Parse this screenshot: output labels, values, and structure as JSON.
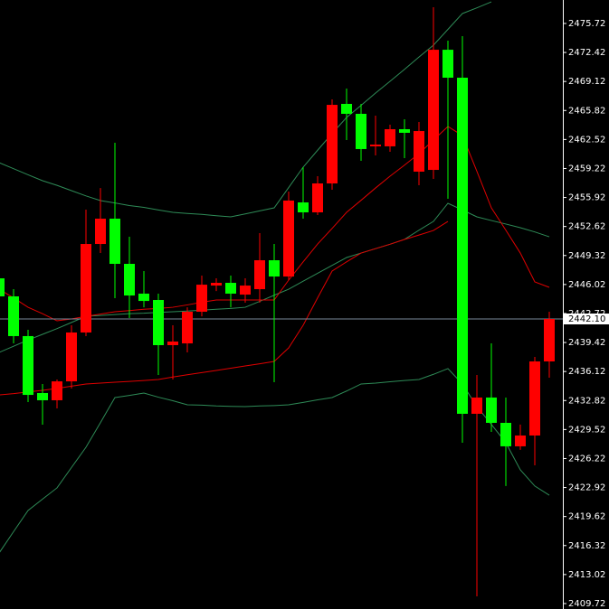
{
  "chart_data": {
    "type": "candlestick",
    "ylim": [
      2409.1,
      2478.39
    ],
    "yticks": [
      2475.72,
      2472.42,
      2469.12,
      2465.82,
      2462.52,
      2459.22,
      2455.92,
      2452.62,
      2449.32,
      2446.02,
      2442.72,
      2439.42,
      2436.12,
      2432.82,
      2429.52,
      2426.22,
      2422.92,
      2419.62,
      2416.32,
      2413.02,
      2409.72
    ],
    "last_price": {
      "value": 2442.1,
      "label": "2442.10"
    },
    "up_color": "#ff0000",
    "down_color": "#00ff00",
    "last_price_color": "#778899",
    "open": [
      2446.72,
      2444.67,
      2440.15,
      2433.67,
      2432.85,
      2435.0,
      2440.56,
      2450.63,
      2453.51,
      2448.37,
      2444.98,
      2444.26,
      2439.12,
      2439.32,
      2442.92,
      2445.9,
      2446.21,
      2444.87,
      2445.49,
      2448.78,
      2446.93,
      2455.36,
      2454.23,
      2457.52,
      2466.57,
      2465.44,
      2461.74,
      2461.74,
      2463.69,
      2458.86,
      2459.06,
      2472.73,
      2469.55,
      2431.31,
      2433.16,
      2430.28,
      2427.61,
      2428.84,
      2437.27
    ],
    "high": [
      2447.03,
      2445.49,
      2440.87,
      2434.7,
      2435.21,
      2441.38,
      2454.54,
      2457.0,
      2462.15,
      2451.45,
      2447.55,
      2444.98,
      2441.38,
      2443.43,
      2447.03,
      2446.72,
      2447.03,
      2446.72,
      2451.87,
      2450.63,
      2456.59,
      2459.37,
      2458.34,
      2467.08,
      2468.32,
      2466.57,
      2465.23,
      2464.2,
      2464.82,
      2464.51,
      2477.57,
      2473.76,
      2474.28,
      2435.73,
      2439.32,
      2433.16,
      2430.08,
      2437.78,
      2442.92
    ],
    "low": [
      2444.46,
      2439.32,
      2432.64,
      2430.07,
      2431.92,
      2434.18,
      2440.15,
      2449.6,
      2444.46,
      2442.2,
      2443.43,
      2435.72,
      2435.21,
      2438.29,
      2442.4,
      2445.28,
      2443.43,
      2443.95,
      2443.95,
      2434.91,
      2446.52,
      2453.51,
      2453.92,
      2456.8,
      2462.46,
      2460.09,
      2460.71,
      2461.12,
      2460.4,
      2457.31,
      2458.03,
      2455.77,
      2428.02,
      2410.54,
      2429.25,
      2423.09,
      2427.2,
      2425.45,
      2435.42
    ],
    "close": [
      2444.67,
      2440.15,
      2433.46,
      2432.85,
      2435.0,
      2440.56,
      2450.63,
      2453.51,
      2448.37,
      2444.77,
      2444.15,
      2439.12,
      2439.53,
      2442.92,
      2446.0,
      2446.21,
      2444.98,
      2445.9,
      2448.78,
      2446.93,
      2455.57,
      2454.23,
      2457.52,
      2466.46,
      2465.44,
      2461.43,
      2461.94,
      2463.69,
      2463.28,
      2463.48,
      2472.73,
      2469.55,
      2431.31,
      2433.16,
      2430.28,
      2427.61,
      2428.84,
      2437.27,
      2442.1
    ],
    "lines": [
      {
        "color": "#2e8b57",
        "values": [
          2459.88,
          2459.2,
          2458.5,
          2457.83,
          2457.3,
          2456.7,
          2456.1,
          2455.57,
          2455.3,
          2455.0,
          2454.8,
          2454.5,
          2454.23,
          2454.1,
          2454.0,
          2453.85,
          2453.72,
          2454.05,
          2454.4,
          2454.74,
          2457.05,
          2459.37,
          2461.3,
          2463.2,
          2465.03,
          2466.4,
          2467.8,
          2469.14,
          2470.5,
          2471.9,
          2473.25,
          2475.05,
          2476.85,
          2477.5,
          2478.18,
          null,
          null,
          null,
          null
        ]
      },
      {
        "color": "#2e8b57",
        "values": [
          2438.29,
          2439.0,
          2439.7,
          2440.35,
          2441.0,
          2441.7,
          2442.41,
          2442.5,
          2442.6,
          2442.7,
          2442.75,
          2442.85,
          2442.92,
          2443.0,
          2443.1,
          2443.2,
          2443.3,
          2443.43,
          2444.1,
          2444.8,
          2445.49,
          2446.4,
          2447.3,
          2448.2,
          2449.09,
          2449.6,
          2450.1,
          2450.6,
          2451.15,
          2452.2,
          2453.2,
          2455.26,
          2454.5,
          2453.72,
          2453.3,
          2452.9,
          2452.48,
          2452.0,
          2451.45
        ]
      },
      {
        "color": "#2e8b57",
        "values": [
          2415.47,
          2417.9,
          2420.31,
          2421.6,
          2422.88,
          2425.2,
          2427.5,
          2430.3,
          2433.16,
          2433.4,
          2433.67,
          2433.2,
          2432.8,
          2432.33,
          2432.3,
          2432.2,
          2432.15,
          2432.13,
          2432.2,
          2432.25,
          2432.33,
          2432.6,
          2432.9,
          2433.16,
          2433.9,
          2434.7,
          2434.8,
          2434.95,
          2435.1,
          2435.21,
          2435.8,
          2436.45,
          2434.7,
          2432.13,
          2430.1,
          2428.02,
          2424.93,
          2423.09,
          2422.05
        ]
      },
      {
        "color": "#e00000",
        "values": [
          2445.49,
          2444.5,
          2443.43,
          2442.7,
          2441.89,
          2442.1,
          2442.4,
          2442.65,
          2442.92,
          2443.05,
          2443.2,
          2443.3,
          2443.43,
          2443.7,
          2444.0,
          2444.26,
          2444.26,
          2444.26,
          2444.26,
          2444.26,
          2446.52,
          2448.6,
          2450.63,
          2452.4,
          2454.23,
          2455.6,
          2457.0,
          2458.34,
          2459.6,
          2460.91,
          2462.45,
          2464.0,
          2462.97,
          2458.9,
          2454.74,
          2452.2,
          2449.6,
          2446.32,
          2445.7
        ]
      },
      {
        "color": "#e00000",
        "values": [
          2433.46,
          2433.6,
          2433.8,
          2433.98,
          2434.2,
          2434.45,
          2434.7,
          2434.8,
          2434.9,
          2435.0,
          2435.1,
          2435.21,
          2435.5,
          2435.75,
          2436.0,
          2436.24,
          2436.5,
          2436.75,
          2437.0,
          2437.27,
          2438.81,
          2441.38,
          2444.5,
          2447.55,
          2448.6,
          2449.6,
          2450.1,
          2450.6,
          2451.15,
          2451.65,
          2452.17,
          2453.2,
          null,
          null,
          null,
          null,
          null,
          null,
          null
        ]
      }
    ]
  }
}
